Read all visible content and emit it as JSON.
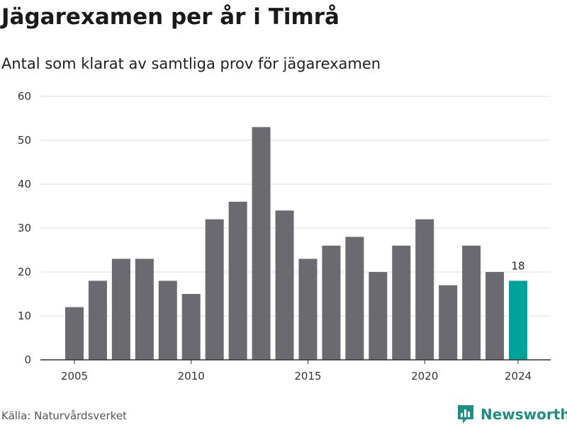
{
  "title": "Jägarexamen per år i Timrå",
  "subtitle": "Antal som klarat av samtliga prov för jägarexamen",
  "source": "Källa: Naturvårdsverket",
  "brand": "Newsworthy",
  "colors": {
    "bar": "#6b6a70",
    "highlight": "#00a39a",
    "grid": "#dddddd",
    "brand": "#1f8e85"
  },
  "chart_data": {
    "type": "bar",
    "x": [
      2005,
      2006,
      2007,
      2008,
      2009,
      2010,
      2011,
      2012,
      2013,
      2014,
      2015,
      2016,
      2017,
      2018,
      2019,
      2020,
      2021,
      2022,
      2023,
      2024
    ],
    "values": [
      12,
      18,
      23,
      23,
      18,
      15,
      32,
      36,
      53,
      34,
      23,
      26,
      28,
      20,
      26,
      32,
      17,
      26,
      20,
      18
    ],
    "xticks": [
      2005,
      2010,
      2015,
      2020,
      2024
    ],
    "yticks": [
      0,
      10,
      20,
      30,
      40,
      50,
      60
    ],
    "ylim": [
      0,
      60
    ],
    "highlight": 2024,
    "data_labels": [
      {
        "x": 2024,
        "label": "18"
      }
    ],
    "grid": true,
    "legend": "none"
  }
}
